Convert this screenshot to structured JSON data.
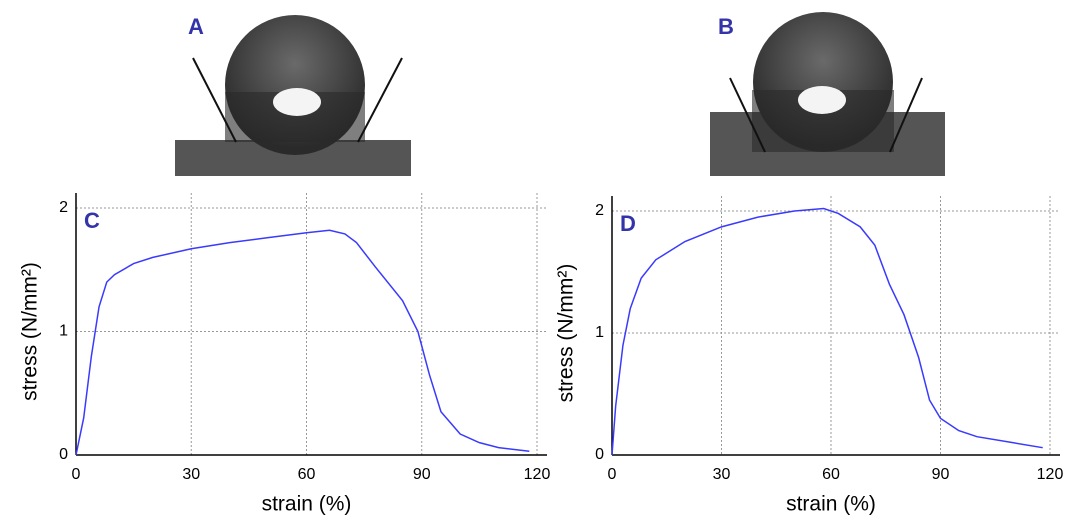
{
  "images": [
    {
      "label": "A"
    },
    {
      "label": "B"
    }
  ],
  "chart_data": [
    {
      "type": "line",
      "annotation": "C",
      "xlabel": "strain (%)",
      "ylabel": "stress (N/mm²)",
      "xlim": [
        0,
        120
      ],
      "ylim": [
        0,
        2
      ],
      "xticks": [
        0,
        30,
        60,
        90,
        120
      ],
      "yticks": [
        0,
        1,
        2
      ],
      "grid": true,
      "series": [
        {
          "color": "#3a3aff",
          "x": [
            0,
            2,
            4,
            6,
            8,
            10,
            15,
            20,
            30,
            40,
            50,
            60,
            66,
            70,
            73,
            78,
            85,
            89,
            92,
            95,
            100,
            105,
            110,
            118
          ],
          "values": [
            0,
            0.3,
            0.8,
            1.2,
            1.4,
            1.46,
            1.55,
            1.6,
            1.67,
            1.72,
            1.76,
            1.8,
            1.82,
            1.79,
            1.72,
            1.52,
            1.25,
            1.0,
            0.65,
            0.35,
            0.17,
            0.1,
            0.06,
            0.03
          ]
        }
      ]
    },
    {
      "type": "line",
      "annotation": "D",
      "xlabel": "strain (%)",
      "ylabel": "stress (N/mm²)",
      "xlim": [
        0,
        120
      ],
      "ylim": [
        0,
        2
      ],
      "xticks": [
        0,
        30,
        60,
        90,
        120
      ],
      "yticks": [
        0,
        1,
        2
      ],
      "grid": true,
      "series": [
        {
          "color": "#3a3aff",
          "x": [
            0,
            1,
            3,
            5,
            8,
            12,
            20,
            30,
            40,
            50,
            58,
            62,
            68,
            72,
            76,
            80,
            84,
            87,
            90,
            95,
            100,
            110,
            118
          ],
          "values": [
            0,
            0.4,
            0.9,
            1.2,
            1.45,
            1.6,
            1.75,
            1.87,
            1.95,
            2.0,
            2.02,
            1.98,
            1.87,
            1.72,
            1.4,
            1.15,
            0.8,
            0.45,
            0.3,
            0.2,
            0.15,
            0.1,
            0.06
          ]
        }
      ]
    }
  ]
}
